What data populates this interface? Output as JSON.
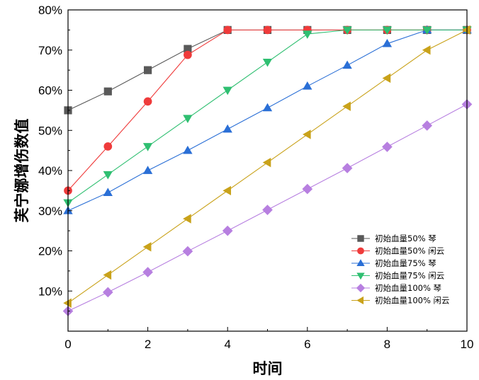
{
  "chart_data": {
    "type": "line",
    "xlabel": "时间",
    "ylabel": "芙宁娜增伤数值",
    "xlim": [
      0,
      10
    ],
    "ylim": [
      0,
      80
    ],
    "x_ticks": [
      "0",
      "2",
      "4",
      "6",
      "8",
      "10"
    ],
    "y_ticks": [
      "10%",
      "20%",
      "30%",
      "40%",
      "50%",
      "60%",
      "70%",
      "80%"
    ],
    "legend_position": "bottom-right",
    "grid": false,
    "x": [
      0,
      1,
      2,
      3,
      4,
      5,
      6,
      7,
      8,
      9,
      10
    ],
    "series": [
      {
        "name": "初始血量50% 琴",
        "marker": "square",
        "color": "#595959",
        "values": [
          55,
          59.7,
          65,
          70.3,
          75,
          75,
          75,
          75,
          75,
          75,
          75
        ]
      },
      {
        "name": "初始血量50% 闲云",
        "marker": "circle",
        "color": "#ef3b3b",
        "values": [
          35,
          46,
          57.2,
          68.8,
          75,
          75,
          75,
          75,
          75,
          75,
          75
        ]
      },
      {
        "name": "初始血量75% 琴",
        "marker": "triangle-up",
        "color": "#2a6fd6",
        "values": [
          30,
          34.5,
          40,
          45,
          50.3,
          55.6,
          61,
          66.2,
          71.6,
          75,
          75
        ]
      },
      {
        "name": "初始血量75% 闲云",
        "marker": "triangle-down",
        "color": "#2fbf71",
        "values": [
          32,
          39,
          46,
          53,
          60,
          67,
          74,
          75,
          75,
          75,
          75
        ]
      },
      {
        "name": "初始血量100% 琴",
        "marker": "diamond",
        "color": "#b77fe0",
        "values": [
          5,
          9.7,
          14.7,
          19.9,
          25,
          30.2,
          35.4,
          40.6,
          45.9,
          51.2,
          56.5
        ]
      },
      {
        "name": "初始血量100% 闲云",
        "marker": "triangle-left",
        "color": "#c9a21a",
        "values": [
          7,
          14,
          21,
          28,
          35,
          42,
          49,
          56,
          63,
          70,
          75
        ]
      }
    ]
  }
}
